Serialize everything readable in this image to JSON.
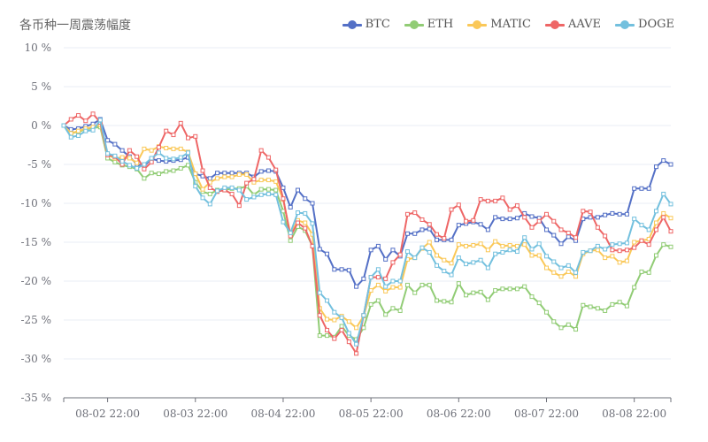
{
  "chart_data": {
    "type": "line",
    "title": "各币种一周震荡幅度",
    "ylim": [
      -35,
      10
    ],
    "y_ticks": [
      10,
      5,
      0,
      -5,
      -10,
      -15,
      -20,
      -25,
      -30,
      -35
    ],
    "y_tick_suffix": " %",
    "x_tick_labels": [
      "08-02 22:00",
      "08-03 22:00",
      "08-04 22:00",
      "08-05 22:00",
      "08-06 22:00",
      "08-07 22:00",
      "08-08 22:00"
    ],
    "grid": true,
    "legend_position": "top-right",
    "x": [
      "08-02 10:00",
      "08-02 12:00",
      "08-02 14:00",
      "08-02 16:00",
      "08-02 18:00",
      "08-02 20:00",
      "08-02 22:00",
      "08-03 00:00",
      "08-03 02:00",
      "08-03 04:00",
      "08-03 06:00",
      "08-03 08:00",
      "08-03 10:00",
      "08-03 12:00",
      "08-03 14:00",
      "08-03 16:00",
      "08-03 18:00",
      "08-03 20:00",
      "08-03 22:00",
      "08-04 00:00",
      "08-04 02:00",
      "08-04 04:00",
      "08-04 06:00",
      "08-04 08:00",
      "08-04 10:00",
      "08-04 12:00",
      "08-04 14:00",
      "08-04 16:00",
      "08-04 18:00",
      "08-04 20:00",
      "08-04 22:00",
      "08-05 00:00",
      "08-05 02:00",
      "08-05 04:00",
      "08-05 06:00",
      "08-05 08:00",
      "08-05 10:00",
      "08-05 12:00",
      "08-05 14:00",
      "08-05 16:00",
      "08-05 18:00",
      "08-05 20:00",
      "08-05 22:00",
      "08-06 00:00",
      "08-06 02:00",
      "08-06 04:00",
      "08-06 06:00",
      "08-06 08:00",
      "08-06 10:00",
      "08-06 12:00",
      "08-06 14:00",
      "08-06 16:00",
      "08-06 18:00",
      "08-06 20:00",
      "08-06 22:00",
      "08-07 00:00",
      "08-07 02:00",
      "08-07 04:00",
      "08-07 06:00",
      "08-07 08:00",
      "08-07 10:00",
      "08-07 12:00",
      "08-07 14:00",
      "08-07 16:00",
      "08-07 18:00",
      "08-07 20:00",
      "08-07 22:00",
      "08-08 00:00",
      "08-08 02:00",
      "08-08 04:00",
      "08-08 06:00",
      "08-08 08:00",
      "08-08 10:00",
      "08-08 12:00",
      "08-08 14:00",
      "08-08 16:00",
      "08-08 18:00",
      "08-08 20:00",
      "08-08 22:00",
      "08-09 00:00",
      "08-09 02:00",
      "08-09 04:00",
      "08-09 06:00",
      "08-09 08:00"
    ],
    "series": [
      {
        "name": "BTC",
        "color": "#5470c6",
        "values": [
          0,
          -0.5,
          -0.4,
          -0.1,
          0.2,
          0.8,
          -1.9,
          -2.4,
          -3.2,
          -4,
          -5,
          -5.2,
          -4.3,
          -4.5,
          -4.6,
          -4.5,
          -4.4,
          -4.1,
          -6.2,
          -6.5,
          -6.8,
          -6.1,
          -6.1,
          -6.1,
          -6.1,
          -6.1,
          -6.6,
          -5.9,
          -5.8,
          -5.9,
          -8,
          -10.5,
          -8.3,
          -9.4,
          -10,
          -15.9,
          -16.5,
          -18.5,
          -18.5,
          -18.6,
          -20.7,
          -19.7,
          -16,
          -15.5,
          -17.2,
          -16,
          -16.8,
          -13.9,
          -13.9,
          -13.4,
          -13.3,
          -14.7,
          -14.7,
          -14.7,
          -12.8,
          -12.6,
          -12.4,
          -12.7,
          -13.4,
          -11.8,
          -12,
          -12,
          -11.9,
          -11.3,
          -11.7,
          -11.9,
          -13.4,
          -14.1,
          -15.2,
          -14.3,
          -14.8,
          -12,
          -11.8,
          -11.8,
          -11.5,
          -11.3,
          -11.4,
          -11.4,
          -8.1,
          -8.1,
          -8.1,
          -5.3,
          -4.5,
          -5
        ]
      },
      {
        "name": "ETH",
        "color": "#91cc75",
        "values": [
          0,
          -1,
          -0.8,
          -0.5,
          -0.3,
          -0.2,
          -4.2,
          -4.7,
          -5.1,
          -5.3,
          -5.6,
          -6.8,
          -6.1,
          -6.2,
          -5.9,
          -5.8,
          -5.5,
          -5.1,
          -7.3,
          -8.5,
          -8.8,
          -8.3,
          -8.3,
          -8.1,
          -8.1,
          -7.8,
          -8.9,
          -8.2,
          -8.2,
          -8.3,
          -11,
          -14.8,
          -13,
          -13.5,
          -15.5,
          -27,
          -27,
          -27.2,
          -25.8,
          -27,
          -27.5,
          -26,
          -23,
          -22.5,
          -24.3,
          -23.5,
          -23.8,
          -20.5,
          -21.5,
          -20.5,
          -20.5,
          -22.5,
          -22.6,
          -22.7,
          -20.3,
          -21.8,
          -21.5,
          -21.4,
          -22.4,
          -21.2,
          -21,
          -21,
          -21,
          -20.7,
          -22,
          -22.8,
          -24,
          -25.2,
          -26,
          -25.6,
          -26.2,
          -23.1,
          -23.3,
          -23.5,
          -23.8,
          -23,
          -22.7,
          -23.2,
          -20.8,
          -18.8,
          -18.9,
          -16.7,
          -15.3,
          -15.6
        ]
      },
      {
        "name": "MATIC",
        "color": "#fac858",
        "values": [
          0,
          -1,
          -0.7,
          -0.4,
          -0.2,
          0.1,
          -3.8,
          -4.2,
          -4.1,
          -4.2,
          -4.8,
          -3,
          -3.2,
          -2.7,
          -2.9,
          -3,
          -3,
          -3.4,
          -6.2,
          -8.2,
          -7.3,
          -6.8,
          -6.6,
          -6.6,
          -6.3,
          -6.3,
          -7.3,
          -7,
          -7,
          -7.2,
          -9.5,
          -14,
          -12.2,
          -12.5,
          -14,
          -23.5,
          -24.9,
          -25,
          -24.5,
          -25.2,
          -26,
          -24.5,
          -21.2,
          -20.5,
          -21.3,
          -20.8,
          -20.8,
          -17.2,
          -17,
          -15.8,
          -15,
          -16.7,
          -17.3,
          -17.7,
          -15.3,
          -15.5,
          -15.4,
          -15.2,
          -16,
          -14.9,
          -15.5,
          -15.4,
          -15.5,
          -15.3,
          -16.7,
          -16.7,
          -18.3,
          -18.9,
          -19.4,
          -18.8,
          -19.4,
          -16.5,
          -16.1,
          -16,
          -17,
          -16.8,
          -17.6,
          -17.4,
          -15,
          -14.8,
          -14.6,
          -12.5,
          -11.3,
          -11.9
        ]
      },
      {
        "name": "AAVE",
        "color": "#ee6666",
        "values": [
          0,
          0.8,
          1.3,
          0.6,
          1.5,
          0.4,
          -3.8,
          -4,
          -5,
          -3.2,
          -4,
          -5.6,
          -4.7,
          -2.8,
          -0.7,
          -1.2,
          0.3,
          -1.6,
          -1.4,
          -5.8,
          -8,
          -8.5,
          -8.3,
          -8.8,
          -10.3,
          -7.4,
          -6.9,
          -3.2,
          -4.1,
          -5.7,
          -9.4,
          -14.2,
          -12.5,
          -13.2,
          -15.5,
          -24.4,
          -26.3,
          -27.4,
          -26.3,
          -27.8,
          -29.3,
          -24.4,
          -19.5,
          -19.5,
          -19.7,
          -17.6,
          -16.6,
          -11.4,
          -11.2,
          -12.1,
          -12.7,
          -14,
          -14.5,
          -10.8,
          -10.2,
          -12.3,
          -12.2,
          -9.5,
          -9.7,
          -9.7,
          -9.3,
          -10.8,
          -10.3,
          -11.8,
          -13.1,
          -12.3,
          -11.4,
          -12.3,
          -13.4,
          -13.8,
          -14.4,
          -11,
          -11.1,
          -13.1,
          -14.2,
          -16,
          -16.1,
          -16,
          -15.7,
          -14.8,
          -15.3,
          -13.4,
          -11.8,
          -13.6
        ]
      },
      {
        "name": "DOGE",
        "color": "#73c0de",
        "values": [
          0,
          -1.5,
          -1.3,
          -0.7,
          -0.6,
          0.7,
          -3.6,
          -3.9,
          -4.6,
          -5.1,
          -5.5,
          -5,
          -4.2,
          -3.5,
          -4.2,
          -4.3,
          -4.1,
          -3.5,
          -7.8,
          -9.3,
          -10.1,
          -8.4,
          -8,
          -8,
          -8.3,
          -9.5,
          -9.2,
          -8.9,
          -8.8,
          -8.9,
          -12.4,
          -13.8,
          -11.2,
          -11.3,
          -12.6,
          -21.5,
          -22.5,
          -24,
          -24.7,
          -26.7,
          -28.1,
          -24.4,
          -19.5,
          -18.5,
          -20.7,
          -20,
          -20,
          -16.2,
          -17,
          -15.7,
          -16.3,
          -18,
          -18.7,
          -19.2,
          -17,
          -17.8,
          -17.6,
          -17.3,
          -18.3,
          -16.5,
          -16.3,
          -16,
          -16.2,
          -14.4,
          -15.9,
          -15.2,
          -16.8,
          -17.5,
          -18.3,
          -18,
          -18.9,
          -16.3,
          -16.1,
          -15.5,
          -15.9,
          -15.3,
          -15.2,
          -15.1,
          -12,
          -12.8,
          -13.4,
          -11,
          -8.8,
          -10.1
        ]
      }
    ]
  }
}
